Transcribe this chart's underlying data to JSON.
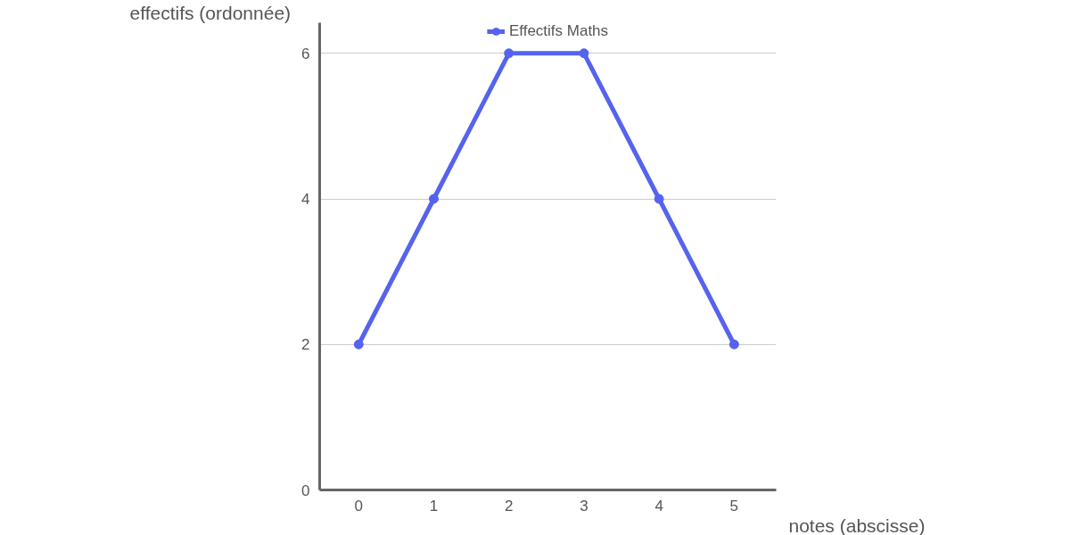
{
  "chart_data": {
    "type": "line",
    "xlabel": "notes (abscisse)",
    "ylabel": "effectifs (ordonnée)",
    "x": [
      0,
      1,
      2,
      3,
      4,
      5
    ],
    "series": [
      {
        "name": "Effectifs Maths",
        "color": "#5563ee",
        "values": [
          2,
          4,
          6,
          6,
          4,
          2
        ]
      }
    ],
    "xlim": [
      -0.52,
      5.56
    ],
    "ylim": [
      0,
      6.42
    ],
    "xticks": [
      0,
      1,
      2,
      3,
      4,
      5
    ],
    "yticks": [
      0,
      2,
      4,
      6
    ],
    "grid": "y",
    "legend": "top",
    "marker": "circle",
    "line_style": "solid"
  }
}
